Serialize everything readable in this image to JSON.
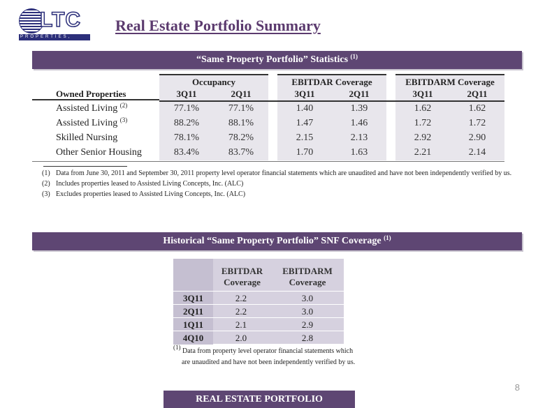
{
  "logo": {
    "word": "LTC",
    "sub": "PROPERTIES, INC."
  },
  "title": "Real Estate Portfolio Summary",
  "stats_band": {
    "text": "“Same Property Portfolio” Statistics",
    "sup": "(1)"
  },
  "stats_table": {
    "groups": [
      "Occupancy",
      "EBITDAR Coverage",
      "EBITDARM Coverage"
    ],
    "row_header": "Owned Properties",
    "periods": [
      "3Q11",
      "2Q11",
      "3Q11",
      "2Q11",
      "3Q11",
      "2Q11"
    ],
    "rows": [
      {
        "label": "Assisted Living",
        "sup": "(2)",
        "values": [
          "77.1%",
          "77.1%",
          "1.40",
          "1.39",
          "1.62",
          "1.62"
        ]
      },
      {
        "label": "Assisted Living",
        "sup": "(3)",
        "values": [
          "88.2%",
          "88.1%",
          "1.47",
          "1.46",
          "1.72",
          "1.72"
        ]
      },
      {
        "label": "Skilled Nursing",
        "sup": "",
        "values": [
          "78.1%",
          "78.2%",
          "2.15",
          "2.13",
          "2.92",
          "2.90"
        ]
      },
      {
        "label": "Other Senior Housing",
        "sup": "",
        "values": [
          "83.4%",
          "83.7%",
          "1.70",
          "1.63",
          "2.21",
          "2.14"
        ]
      }
    ]
  },
  "stats_notes": [
    {
      "num": "(1)",
      "text": "Data from June 30, 2011 and September 30, 2011 property level operator financial statements which are unaudited and have not been independently verified by us."
    },
    {
      "num": "(2)",
      "text": "Includes properties leased to Assisted Living Concepts, Inc. (ALC)"
    },
    {
      "num": "(3)",
      "text": "Excludes properties leased to Assisted Living Concepts, Inc. (ALC)"
    }
  ],
  "snf_band": {
    "text": "Historical “Same Property Portfolio” SNF Coverage",
    "sup": "(1)"
  },
  "snf_table": {
    "headers": [
      [
        "EBITDAR",
        "Coverage"
      ],
      [
        "EBITDARM",
        "Coverage"
      ]
    ],
    "rows": [
      {
        "period": "3Q11",
        "ebitdar": "2.2",
        "ebitdarm": "3.0"
      },
      {
        "period": "2Q11",
        "ebitdar": "2.2",
        "ebitdarm": "3.0"
      },
      {
        "period": "1Q11",
        "ebitdar": "2.1",
        "ebitdarm": "2.9"
      },
      {
        "period": "4Q10",
        "ebitdar": "2.0",
        "ebitdarm": "2.8"
      }
    ]
  },
  "snf_note": {
    "num": "(1)",
    "line1": "Data from property level operator financial statements which",
    "line2": "are unaudited and have not been independently verified by us."
  },
  "page_number": "8",
  "footer": "REAL ESTATE PORTFOLIO",
  "colors": {
    "band": "#5e4673",
    "title": "#5b3a6e",
    "shade": "#e8e6ec",
    "snf_bg": "#d6d1df"
  }
}
